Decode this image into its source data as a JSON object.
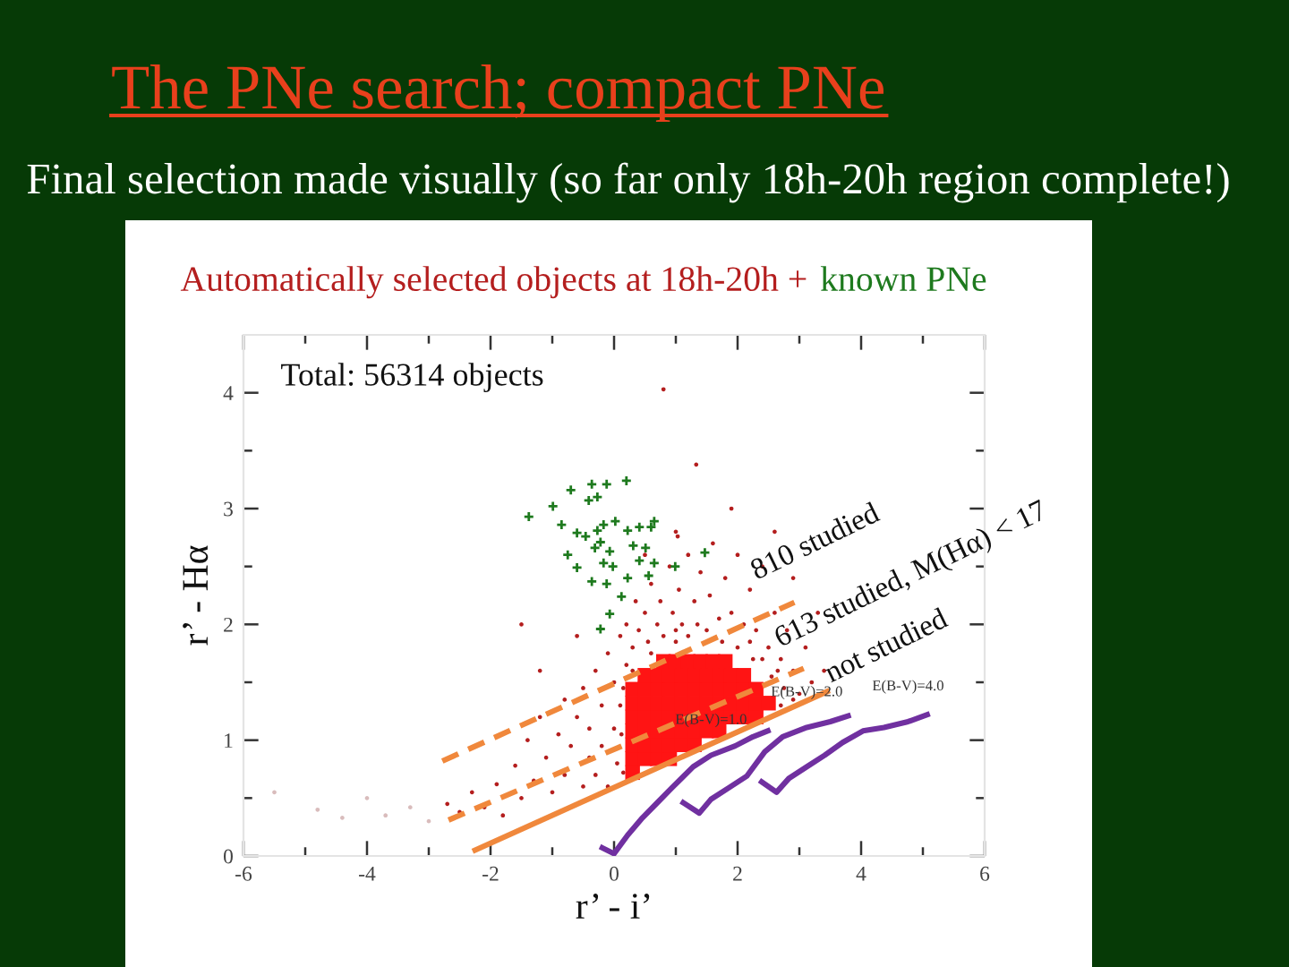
{
  "chart_data": {
    "type": "scatter",
    "title": "The PNe search; compact PNe",
    "subtitle": "Final selection made visually (so far only 18h-20h region complete!)",
    "xlabel": "r’ - i’",
    "ylabel": "r’ - Hα",
    "xlim": [
      -6,
      6
    ],
    "ylim": [
      0,
      4.5
    ],
    "xticks": [
      -6,
      {
        "value": -5,
        "label": null
      },
      -4,
      {
        "value": -3,
        "label": null
      },
      -2,
      {
        "value": -1,
        "label": null
      },
      0,
      {
        "value": 1,
        "label": null
      },
      2,
      {
        "value": 3,
        "label": null
      },
      4,
      {
        "value": 5,
        "label": null
      },
      6
    ],
    "yticks": [
      0,
      {
        "value": 0.5,
        "label": null
      },
      1,
      {
        "value": 1.5,
        "label": null
      },
      2,
      {
        "value": 2.5,
        "label": null
      },
      3,
      {
        "value": 3.5,
        "label": null
      },
      4
    ],
    "legend": "top",
    "annotations": [
      "Total: 56314 objects",
      "810 studied",
      "613 studied, M(Hα) < 17",
      "not studied",
      {
        "text": "E(B-V)=1.0",
        "x": 1.57,
        "y": 0.87
      },
      {
        "text": "E(B-V)=2.0",
        "x": 3.12,
        "y": 1.11
      },
      {
        "text": "E(B-V)=4.0",
        "x": 4.76,
        "y": 1.16
      }
    ],
    "series": [
      {
        "name": "Automatically selected objects at 18h-20h +",
        "color": "#b41e1e",
        "marker": "circle",
        "x": [
          -2.7,
          -2.5,
          -2.3,
          -2.1,
          -1.9,
          -1.8,
          -1.6,
          -1.5,
          -1.4,
          -1.3,
          -1.2,
          -1.1,
          -1.0,
          -0.9,
          -0.8,
          -0.8,
          -0.7,
          -0.6,
          -0.5,
          -0.5,
          -0.4,
          -0.4,
          -0.3,
          -0.3,
          -0.2,
          -0.2,
          -0.1,
          -0.1,
          0.0,
          0.0,
          0.05,
          0.1,
          0.1,
          0.2,
          0.3,
          0.35,
          0.4,
          0.5,
          0.55,
          0.6,
          0.7,
          0.75,
          0.8,
          0.9,
          0.95,
          1.0,
          1.05,
          1.1,
          1.2,
          1.2,
          1.3,
          1.35,
          1.4,
          1.5,
          1.55,
          1.6,
          1.7,
          1.75,
          1.8,
          1.9,
          2.0,
          2.0,
          2.1,
          2.2,
          2.25,
          2.3,
          2.4,
          2.5,
          2.55,
          2.6,
          2.7,
          2.75,
          2.8,
          2.9,
          3.0,
          3.1,
          3.2,
          3.3,
          3.4,
          2.9,
          2.6,
          1.0,
          1.9,
          1.33,
          0.5,
          -0.6,
          -1.2,
          0.8,
          1.03,
          2.7,
          2.9,
          -1.5,
          0.15,
          0.12,
          0.15,
          0.2,
          2.65,
          2.4,
          2.2,
          0.3,
          0.6,
          1.0
        ],
        "values": [
          0.45,
          0.38,
          0.55,
          0.42,
          0.62,
          0.35,
          0.78,
          0.5,
          1.0,
          0.65,
          1.2,
          0.85,
          0.55,
          1.05,
          1.35,
          0.7,
          0.95,
          1.2,
          0.6,
          1.45,
          0.85,
          1.1,
          1.6,
          0.7,
          1.3,
          0.95,
          1.75,
          0.6,
          1.5,
          1.1,
          0.8,
          1.9,
          1.3,
          2.0,
          1.8,
          2.2,
          1.95,
          2.1,
          1.85,
          2.35,
          2.0,
          2.2,
          1.9,
          2.5,
          2.1,
          1.85,
          2.3,
          2.0,
          2.6,
          1.9,
          2.2,
          2.0,
          2.45,
          1.95,
          2.25,
          2.7,
          2.05,
          1.85,
          2.4,
          2.1,
          1.8,
          2.6,
          2.0,
          2.3,
          1.7,
          1.95,
          2.5,
          1.8,
          1.55,
          2.1,
          1.7,
          1.45,
          1.95,
          1.6,
          1.4,
          1.8,
          1.5,
          2.1,
          1.6,
          2.4,
          2.8,
          2.8,
          3.0,
          3.38,
          2.6,
          1.9,
          1.6,
          4.03,
          2.76,
          1.3,
          1.35,
          2.0,
          0.72,
          1.05,
          1.45,
          1.65,
          1.6,
          1.7,
          1.85,
          1.6,
          1.75,
          1.95
        ]
      },
      {
        "color": "#ff1414",
        "marker": "square",
        "x": [
          0.3,
          0.3,
          0.5,
          0.7,
          0.9,
          0.3,
          0.5,
          0.7,
          0.9,
          1.1,
          1.3,
          0.3,
          0.5,
          0.7,
          0.9,
          1.1,
          1.3,
          1.5,
          1.7,
          0.3,
          0.5,
          0.7,
          0.9,
          1.1,
          1.3,
          1.5,
          1.7,
          1.9,
          2.1,
          2.3,
          0.3,
          0.5,
          0.7,
          0.9,
          1.1,
          1.3,
          1.5,
          1.7,
          1.9,
          2.1,
          2.3,
          2.5,
          0.3,
          0.5,
          0.7,
          0.9,
          1.1,
          1.3,
          1.5,
          1.7,
          1.9,
          2.1,
          2.3,
          0.5,
          0.7,
          0.9,
          1.1,
          1.3,
          1.5,
          1.7,
          1.9,
          2.1,
          0.8,
          1.0,
          1.2,
          1.4,
          1.6,
          1.8
        ],
        "values": [
          0.72,
          0.84,
          0.84,
          0.84,
          0.84,
          0.96,
          0.96,
          0.96,
          0.96,
          0.96,
          0.96,
          1.08,
          1.08,
          1.08,
          1.08,
          1.08,
          1.08,
          1.08,
          1.08,
          1.2,
          1.2,
          1.2,
          1.2,
          1.2,
          1.2,
          1.2,
          1.2,
          1.2,
          1.2,
          1.2,
          1.32,
          1.32,
          1.32,
          1.32,
          1.32,
          1.32,
          1.32,
          1.32,
          1.32,
          1.32,
          1.32,
          1.32,
          1.44,
          1.44,
          1.44,
          1.44,
          1.44,
          1.44,
          1.44,
          1.44,
          1.44,
          1.44,
          1.44,
          1.56,
          1.56,
          1.56,
          1.56,
          1.56,
          1.56,
          1.56,
          1.56,
          1.56,
          1.68,
          1.68,
          1.68,
          1.68,
          1.68,
          1.68
        ]
      },
      {
        "color": "#d9bcbc",
        "marker": "circle",
        "x": [
          -5.5,
          -4.8,
          -4.4,
          -4.0,
          -3.7,
          -3.3,
          -3.0
        ],
        "values": [
          0.55,
          0.4,
          0.33,
          0.5,
          0.35,
          0.42,
          0.3
        ]
      },
      {
        "name": "known PNe",
        "color": "#1e7a1e",
        "marker": "cross",
        "x": [
          -1.38,
          -0.99,
          -0.7,
          -0.36,
          -0.12,
          0.2,
          -0.41,
          -0.85,
          -0.6,
          -0.46,
          -0.27,
          -0.17,
          0.02,
          0.22,
          0.41,
          0.65,
          0.6,
          -0.22,
          -0.07,
          -0.31,
          0.31,
          0.51,
          -0.6,
          -0.17,
          -0.02,
          0.41,
          0.65,
          0.99,
          1.47,
          -0.36,
          -0.12,
          0.22,
          0.56,
          0.12,
          -0.07,
          -0.22,
          -0.75,
          -0.27
        ],
        "values": [
          2.93,
          3.02,
          3.16,
          3.21,
          3.21,
          3.24,
          3.07,
          2.86,
          2.79,
          2.76,
          2.81,
          2.86,
          2.89,
          2.81,
          2.84,
          2.89,
          2.84,
          2.71,
          2.63,
          2.66,
          2.68,
          2.66,
          2.49,
          2.53,
          2.5,
          2.55,
          2.53,
          2.5,
          2.62,
          2.37,
          2.35,
          2.4,
          2.42,
          2.24,
          2.09,
          1.96,
          2.6,
          3.1
        ]
      },
      {
        "type": "line",
        "color": "#f0883c",
        "line_style": "solid",
        "x": [
          -2.25,
          3.45
        ],
        "values": [
          0.05,
          1.42
        ]
      },
      {
        "type": "line",
        "color": "#f0883c",
        "line_style": "dashed",
        "x": [
          -2.68,
          3.07
        ],
        "values": [
          0.31,
          1.62
        ]
      },
      {
        "type": "line",
        "color": "#f0883c",
        "line_style": "dashed",
        "x": [
          -2.78,
          2.92
        ],
        "values": [
          0.82,
          2.19
        ]
      },
      {
        "type": "line",
        "color": "#7030a0",
        "line_style": "solid",
        "x": [
          -0.19,
          0.0,
          0.22,
          0.46,
          0.7,
          0.94,
          1.28,
          1.57,
          1.96,
          2.25,
          2.49
        ],
        "values": [
          0.07,
          0.02,
          0.18,
          0.33,
          0.46,
          0.59,
          0.77,
          0.87,
          0.95,
          1.03,
          1.08
        ]
      },
      {
        "type": "line",
        "color": "#7030a0",
        "line_style": "solid",
        "x": [
          1.12,
          1.38,
          1.57,
          1.86,
          2.15,
          2.44,
          2.73,
          3.12,
          3.5,
          3.79
        ],
        "values": [
          0.46,
          0.37,
          0.49,
          0.59,
          0.69,
          0.9,
          1.03,
          1.11,
          1.16,
          1.21
        ]
      },
      {
        "type": "line",
        "color": "#7030a0",
        "line_style": "solid",
        "x": [
          2.39,
          2.63,
          2.83,
          3.12,
          3.41,
          3.7,
          4.03,
          4.37,
          4.76,
          5.07
        ],
        "values": [
          0.64,
          0.55,
          0.67,
          0.77,
          0.87,
          0.98,
          1.08,
          1.11,
          1.16,
          1.22
        ]
      }
    ]
  }
}
